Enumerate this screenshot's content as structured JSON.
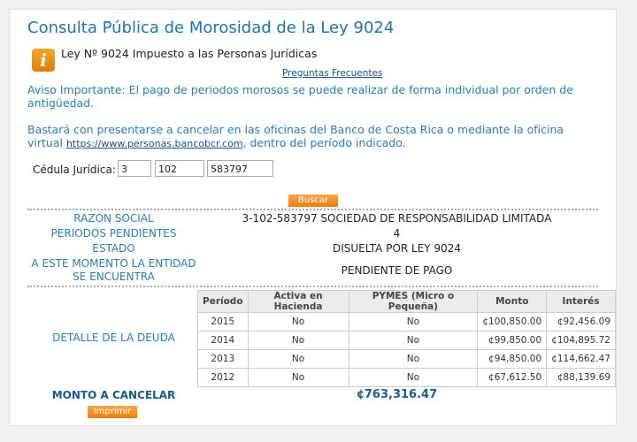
{
  "header": {
    "title": "Consulta Pública de Morosidad de la Ley 9024",
    "subtitle": "Ley Nº 9024 Impuesto a las Personas Jurídicas",
    "faq_link": "Preguntas Frecuentes"
  },
  "notice": "Aviso Importante: El pago de periodos morosos se puede realizar de forma individual por orden de antigüedad.",
  "info": {
    "text_before": "Bastará con presentarse a cancelar en las oficinas del Banco de Costa Rica o mediante la oficina virtual",
    "link": "https://www.personas.bancobcr.com",
    "text_after": ", dentro del período indicado."
  },
  "form": {
    "label": "Cédula Jurídica:",
    "fields": [
      "3",
      "102",
      "583797"
    ],
    "button": "Buscar"
  },
  "summary": {
    "rows": [
      [
        "RAZON SOCIAL",
        "3-102-583797 SOCIEDAD DE RESPONSABILIDAD LIMITADA"
      ],
      [
        "PERIODOS PENDIENTES",
        "4"
      ],
      [
        "ESTADO",
        "DISUELTA POR LEY 9024"
      ],
      [
        "A ESTE MOMENTO LA ENTIDAD SE ENCUENTRA",
        "PENDIENTE DE PAGO"
      ]
    ]
  },
  "debt": {
    "label": "DETALLE DE LA DEUDA",
    "columns": [
      "Período",
      "Activa en Hacienda",
      "PYMES (Micro o Pequeña)",
      "Monto",
      "Interés"
    ],
    "rows": [
      [
        "2015",
        "No",
        "No",
        "¢100,850.00",
        "¢92,456.09"
      ],
      [
        "2014",
        "No",
        "No",
        "¢99,850.00",
        "¢104,895.72"
      ],
      [
        "2013",
        "No",
        "No",
        "¢94,850.00",
        "¢114,662.47"
      ],
      [
        "2012",
        "No",
        "No",
        "¢67,612.50",
        "¢88,139.69"
      ]
    ]
  },
  "total": {
    "label": "MONTO A CANCELAR",
    "value": "¢763,316.47"
  },
  "print_button": "Imprimir"
}
